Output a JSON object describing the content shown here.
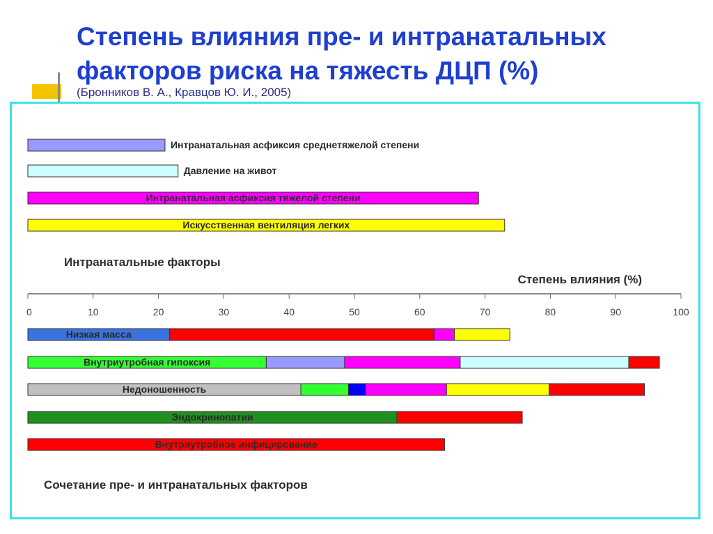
{
  "slide": {
    "title": "Степень влияния пре- и интранатальных факторов риска на тяжесть ДЦП (%)",
    "subtitle": "(Бронников В. А., Кравцов Ю. И., 2005)"
  },
  "chart_data": {
    "type": "bar",
    "orientation": "horizontal",
    "stacked": true,
    "xlabel": "Степень влияния (%)",
    "xlim": [
      0,
      100
    ],
    "xticks": [
      0,
      10,
      20,
      30,
      40,
      50,
      60,
      70,
      80,
      90,
      100
    ],
    "groups": [
      {
        "label": "Интранатальные факторы",
        "bars": [
          {
            "label": "Интранатальная асфиксия среднетяжелой степени",
            "label_position": "outside",
            "segments": [
              {
                "value": 21,
                "color": "#9999ff"
              }
            ]
          },
          {
            "label": "Давление на живот",
            "label_position": "outside",
            "segments": [
              {
                "value": 23,
                "color": "#ccffff"
              }
            ]
          },
          {
            "label": "Интранатальная асфиксия тяжелой степени",
            "label_position": "inside",
            "segments": [
              {
                "value": 69,
                "color": "#ff00ff"
              }
            ]
          },
          {
            "label": "Искусственная вентиляция легких",
            "label_position": "inside",
            "segments": [
              {
                "value": 73,
                "color": "#ffff00"
              }
            ]
          }
        ]
      },
      {
        "label": "Сочетание пре- и интранатальных факторов",
        "bars": [
          {
            "label": "Низкая масса",
            "label_position": "inside",
            "label_color": "#ffffff",
            "segments": [
              {
                "value": 21.7,
                "color": "#3a72e0"
              },
              {
                "value": 40.5,
                "color": "#ff0000"
              },
              {
                "value": 3.1,
                "color": "#ff00ff"
              },
              {
                "value": 8.5,
                "color": "#ffff00"
              }
            ]
          },
          {
            "label": "Внутриутробная гипоксия",
            "label_position": "inside",
            "segments": [
              {
                "value": 36.5,
                "color": "#33ff33"
              },
              {
                "value": 12,
                "color": "#9999ff"
              },
              {
                "value": 17.7,
                "color": "#ff00ff"
              },
              {
                "value": 25.8,
                "color": "#ccffff"
              },
              {
                "value": 4.7,
                "color": "#ff0000"
              }
            ]
          },
          {
            "label": "Недоношенность",
            "label_position": "inside",
            "segments": [
              {
                "value": 41.8,
                "color": "#c0c0c0"
              },
              {
                "value": 7.3,
                "color": "#33ff33"
              },
              {
                "value": 2.6,
                "color": "#0000ff"
              },
              {
                "value": 12.4,
                "color": "#ff00ff"
              },
              {
                "value": 15.7,
                "color": "#ffff00"
              },
              {
                "value": 14.6,
                "color": "#ff0000"
              }
            ]
          },
          {
            "label": "Эндокринопатии",
            "label_position": "inside",
            "segments": [
              {
                "value": 56.5,
                "color": "#1f8f1f"
              },
              {
                "value": 19.2,
                "color": "#ff0000"
              }
            ]
          },
          {
            "label": "Внутриутробное инфицирование",
            "label_position": "inside",
            "segments": [
              {
                "value": 63.8,
                "color": "#ff0000"
              }
            ]
          }
        ]
      }
    ]
  }
}
